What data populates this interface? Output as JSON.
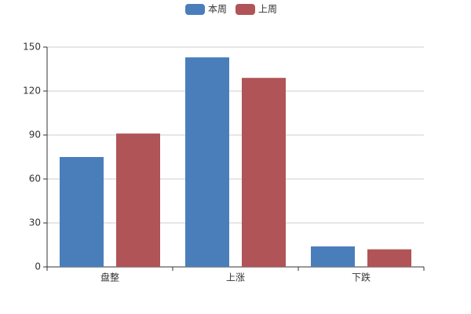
{
  "chart_data": {
    "type": "bar",
    "categories": [
      "盘整",
      "上涨",
      "下跌"
    ],
    "series": [
      {
        "name": "本周",
        "color": "#4a7ebb",
        "values": [
          75,
          143,
          14
        ]
      },
      {
        "name": "上周",
        "color": "#b05457",
        "values": [
          91,
          129,
          12
        ]
      }
    ],
    "ylim": [
      0,
      150
    ],
    "yticks": [
      0,
      30,
      60,
      90,
      120,
      150
    ],
    "grid": true,
    "legend": "top"
  }
}
